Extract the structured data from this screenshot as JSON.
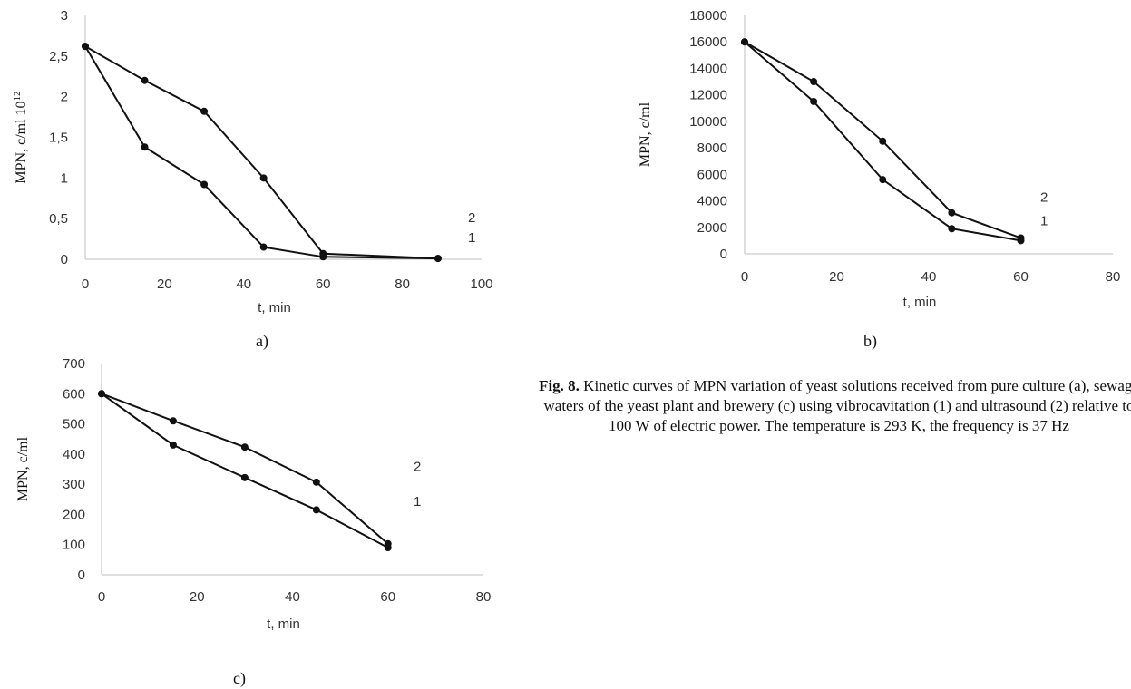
{
  "chart_data": [
    {
      "type": "line",
      "panel": "a)",
      "xlabel": "t, min",
      "ylabel": "MPN, c/ml 10",
      "ylabel_sup": "12",
      "xlim": [
        0,
        100
      ],
      "ylim": [
        0,
        3
      ],
      "xticks": [
        0,
        20,
        40,
        60,
        80,
        100
      ],
      "xtick_labels": [
        "0",
        "20",
        "40",
        "60",
        "80",
        "100"
      ],
      "yticks": [
        0,
        0.5,
        1,
        1.5,
        2,
        2.5,
        3
      ],
      "ytick_labels": [
        "0",
        "0,5",
        "1",
        "1,5",
        "2",
        "2,5",
        "3"
      ],
      "grid": false,
      "series": [
        {
          "name": "1",
          "x": [
            0,
            15,
            30,
            45,
            60,
            89
          ],
          "y": [
            2.62,
            1.38,
            0.92,
            0.15,
            0.03,
            0.01
          ]
        },
        {
          "name": "2",
          "x": [
            0,
            15,
            30,
            45,
            60,
            89
          ],
          "y": [
            2.62,
            2.2,
            1.82,
            1.0,
            0.07,
            0.01
          ]
        }
      ]
    },
    {
      "type": "line",
      "panel": "b)",
      "xlabel": "t, min",
      "ylabel": "MPN, c/ml",
      "xlim": [
        0,
        80
      ],
      "ylim": [
        0,
        18000
      ],
      "xticks": [
        0,
        20,
        40,
        60,
        80
      ],
      "xtick_labels": [
        "0",
        "20",
        "40",
        "60",
        "80"
      ],
      "yticks": [
        0,
        2000,
        4000,
        6000,
        8000,
        10000,
        12000,
        14000,
        16000,
        18000
      ],
      "ytick_labels": [
        "0",
        "2000",
        "4000",
        "6000",
        "8000",
        "10000",
        "12000",
        "14000",
        "16000",
        "18000"
      ],
      "grid": false,
      "series": [
        {
          "name": "1",
          "x": [
            0,
            15,
            30,
            45,
            60
          ],
          "y": [
            16000,
            11500,
            5600,
            1900,
            1000
          ]
        },
        {
          "name": "2",
          "x": [
            0,
            15,
            30,
            45,
            60
          ],
          "y": [
            16000,
            13000,
            8500,
            3100,
            1200
          ]
        }
      ]
    },
    {
      "type": "line",
      "panel": "c)",
      "xlabel": "t, min",
      "ylabel": "MPN, c/ml",
      "xlim": [
        0,
        80
      ],
      "ylim": [
        0,
        700
      ],
      "xticks": [
        0,
        20,
        40,
        60,
        80
      ],
      "xtick_labels": [
        "0",
        "20",
        "40",
        "60",
        "80"
      ],
      "yticks": [
        0,
        100,
        200,
        300,
        400,
        500,
        600,
        700
      ],
      "ytick_labels": [
        "0",
        "100",
        "200",
        "300",
        "400",
        "500",
        "600",
        "700"
      ],
      "grid": false,
      "series": [
        {
          "name": "1",
          "x": [
            0,
            15,
            30,
            45,
            60
          ],
          "y": [
            600,
            430,
            322,
            215,
            90
          ]
        },
        {
          "name": "2",
          "x": [
            0,
            15,
            30,
            45,
            60
          ],
          "y": [
            600,
            510,
            423,
            307,
            103
          ]
        }
      ]
    }
  ],
  "caption": {
    "bold": "Fig. 8.",
    "text": " Kinetic curves of MPN variation of yeast solutions received from pure culture (a), sewage waters of the yeast plant and brewery (c) using vibrocavitation (1) and ultrasound (2) relative to 100 W of electric power. The temperature is 293 K, the frequency is 37 Hz"
  }
}
